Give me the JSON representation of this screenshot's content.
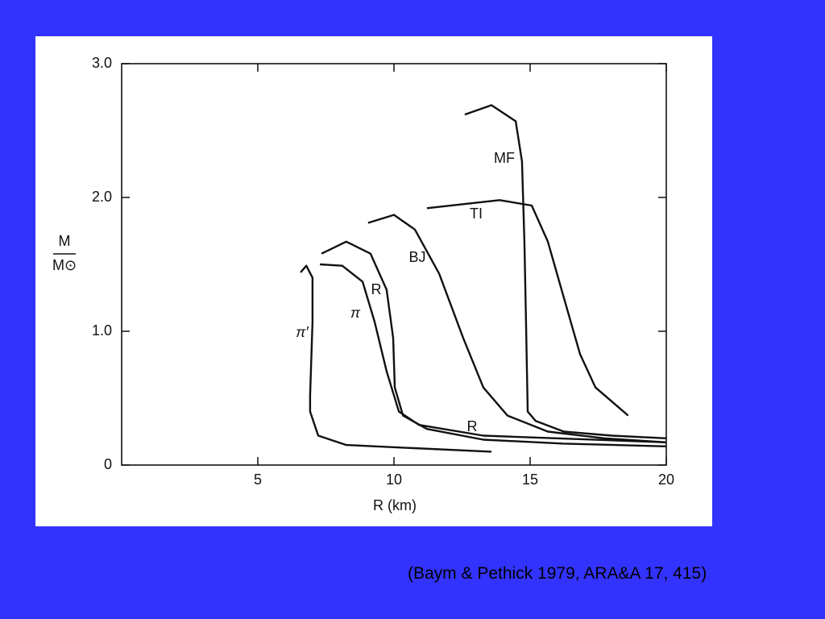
{
  "chart_data": {
    "type": "line",
    "xlabel": "R (km)",
    "ylabel": {
      "numerator": "M",
      "denominator": "M⊙"
    },
    "xlim": [
      0,
      20
    ],
    "ylim": [
      0,
      3
    ],
    "xticks": [
      5,
      10,
      15,
      20
    ],
    "yticks": [
      0,
      {
        "value": 1,
        "label": "1.0"
      },
      {
        "value": 2,
        "label": "2.0"
      },
      {
        "value": 3,
        "label": "3.0"
      }
    ],
    "grid": false,
    "series": [
      {
        "name": "MF",
        "color": "#111111",
        "x": [
          12.6,
          13.58,
          14.47,
          14.7,
          14.79,
          14.85,
          14.91,
          15.2,
          16.24,
          18.0,
          20
        ],
        "values": [
          2.62,
          2.69,
          2.57,
          2.27,
          1.67,
          1.07,
          0.4,
          0.33,
          0.25,
          0.22,
          0.2
        ]
      },
      {
        "name": "TI",
        "color": "#111111",
        "x": [
          11.21,
          13.88,
          15.06,
          15.65,
          16.24,
          16.83,
          17.4,
          18.6
        ],
        "values": [
          1.92,
          1.98,
          1.94,
          1.67,
          1.25,
          0.83,
          0.58,
          0.37
        ]
      },
      {
        "name": "BJ",
        "color": "#111111",
        "x": [
          9.05,
          10.0,
          10.77,
          11.66,
          12.54,
          13.28,
          14.17,
          15.65,
          17.72,
          20
        ],
        "values": [
          1.81,
          1.87,
          1.76,
          1.43,
          0.95,
          0.58,
          0.37,
          0.25,
          0.2,
          0.17
        ]
      },
      {
        "name": "R",
        "color": "#111111",
        "x": [
          7.34,
          8.25,
          9.14,
          9.73,
          9.97,
          10.03,
          10.33,
          11.21,
          13.28,
          16.24,
          20
        ],
        "values": [
          1.58,
          1.67,
          1.58,
          1.31,
          0.95,
          0.58,
          0.37,
          0.27,
          0.19,
          0.16,
          0.14
        ]
      },
      {
        "name": "π",
        "color": "#111111",
        "x": [
          7.28,
          8.1,
          8.85,
          9.29,
          9.73,
          10.18,
          10.92,
          13.28,
          20
        ],
        "values": [
          1.5,
          1.49,
          1.37,
          1.07,
          0.7,
          0.4,
          0.3,
          0.22,
          0.17
        ]
      },
      {
        "name": "π′",
        "color": "#111111",
        "x": [
          6.57,
          6.78,
          7.01,
          7.01,
          6.92,
          6.92,
          7.22,
          8.25,
          10.33,
          13.58
        ],
        "values": [
          1.44,
          1.49,
          1.4,
          1.07,
          0.52,
          0.4,
          0.22,
          0.15,
          0.13,
          0.1
        ]
      }
    ],
    "annotations": [
      "R"
    ]
  },
  "caption": "(Baym & Pethick 1979, ARA&A 17, 415)"
}
